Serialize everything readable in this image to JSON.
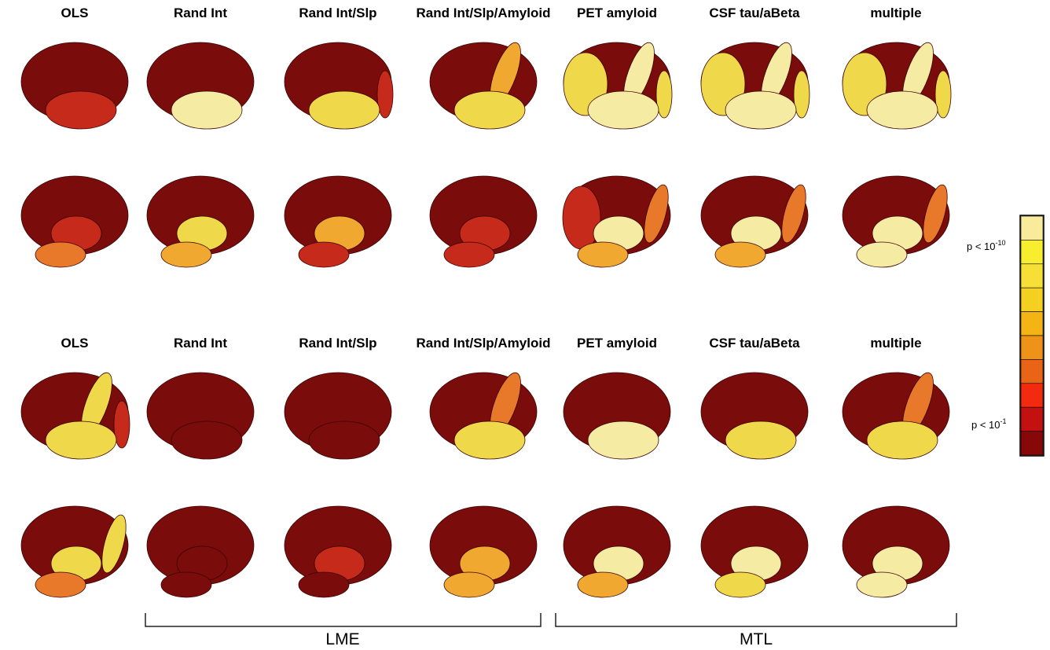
{
  "panels": [
    {
      "headers": [
        "OLS",
        "Rand Int",
        "Rand Int/Slp",
        "Rand Int/Slp/Amyloid",
        "PET amyloid",
        "CSF tau/aBeta",
        "multiple"
      ]
    },
    {
      "headers": [
        "OLS",
        "Rand Int",
        "Rand Int/Slp",
        "Rand Int/Slp/Amyloid",
        "PET amyloid",
        "CSF tau/aBeta",
        "multiple"
      ]
    }
  ],
  "colorbar": {
    "top_label": {
      "text": "p < 10",
      "exponent": "-10"
    },
    "bottom_label": {
      "text": "p < 10",
      "exponent": "-1"
    }
  },
  "groups": [
    "LME",
    "MTL"
  ]
}
